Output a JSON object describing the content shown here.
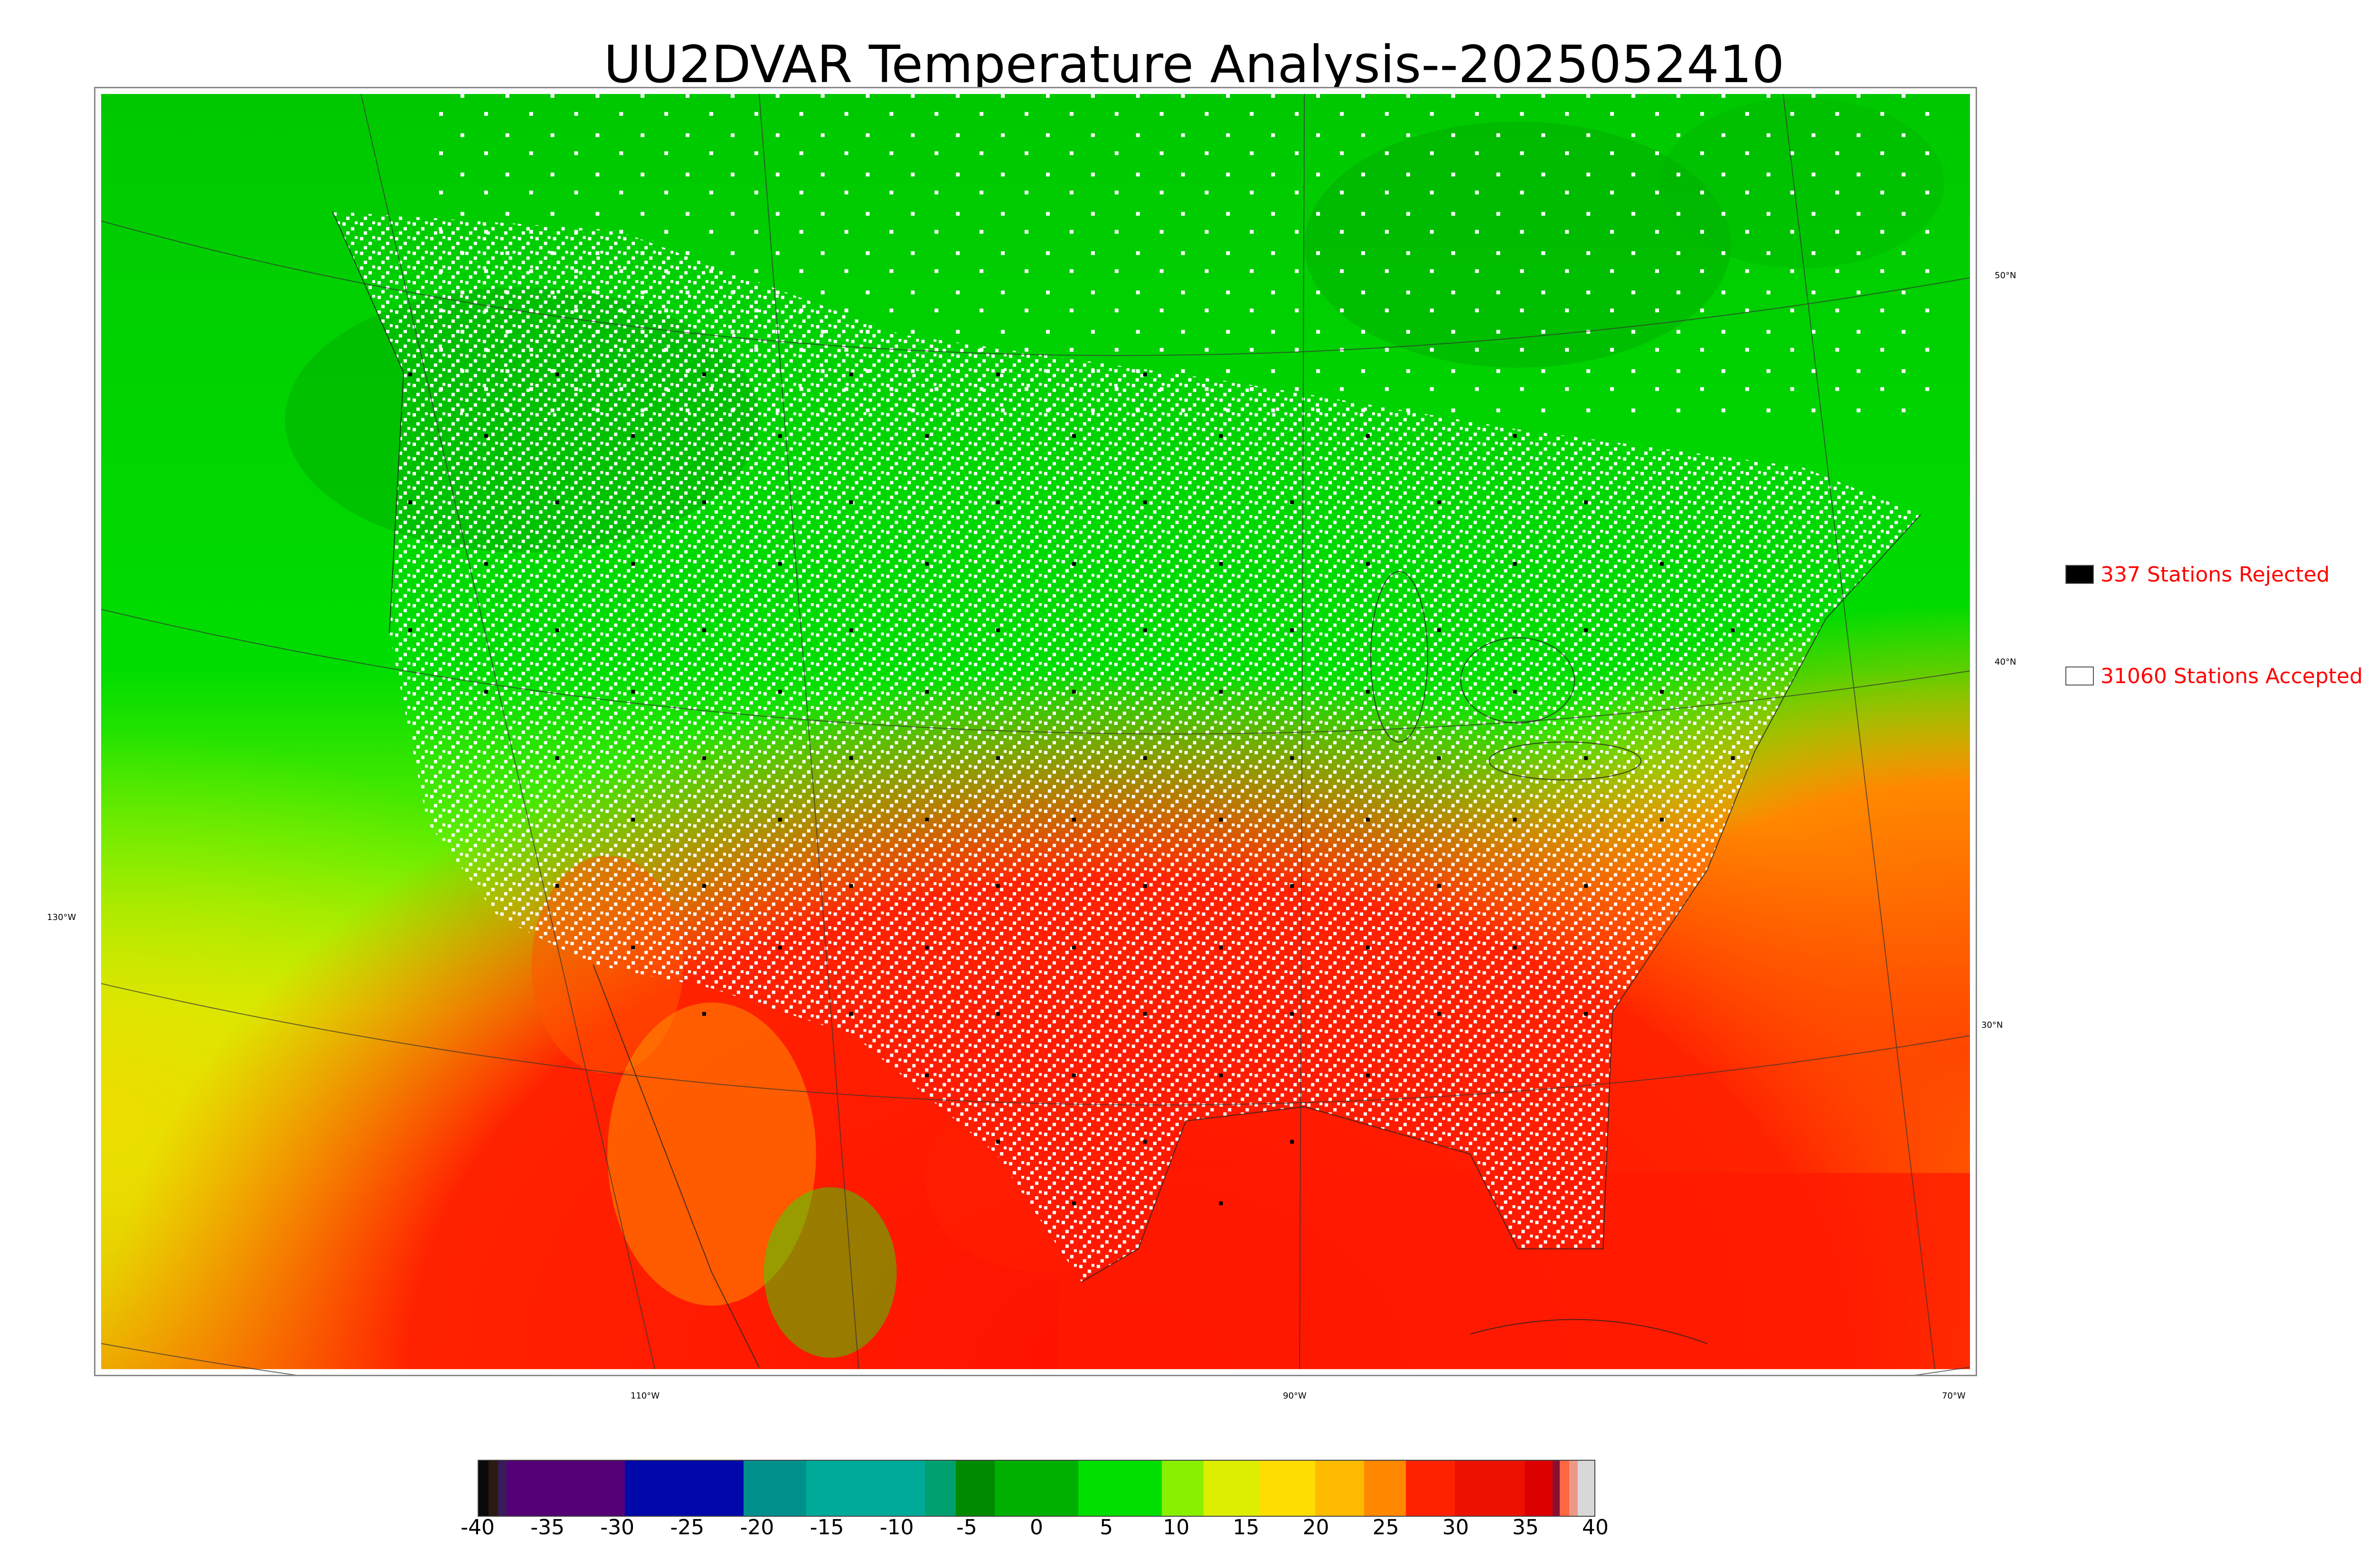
{
  "title": "UU2DVAR Temperature Analysis--2025052410",
  "map": {
    "latitude_labels": [
      "50°N",
      "40°N",
      "30°N"
    ],
    "longitude_labels": [
      "130°W",
      "110°W",
      "90°W",
      "70°W"
    ]
  },
  "legend": {
    "rejected": {
      "label": "337 Stations Rejected",
      "swatch_color": "#000000"
    },
    "accepted": {
      "label": "31060 Stations Accepted",
      "swatch_color": "#ffffff"
    }
  },
  "colorbar": {
    "ticks": [
      "-40",
      "-35",
      "-30",
      "-25",
      "-20",
      "-15",
      "-10",
      "-5",
      "0",
      "5",
      "10",
      "15",
      "20",
      "25",
      "30",
      "35",
      "40"
    ],
    "range": [
      -40,
      40
    ],
    "segments": [
      {
        "from": -40,
        "to": -39.3,
        "color": "#0a0a0a"
      },
      {
        "from": -39.3,
        "to": -38.6,
        "color": "#2a1a10"
      },
      {
        "from": -38.6,
        "to": -38.0,
        "color": "#3a1a5a"
      },
      {
        "from": -38.0,
        "to": -29.5,
        "color": "#550077"
      },
      {
        "from": -29.5,
        "to": -21.0,
        "color": "#0008aa"
      },
      {
        "from": -21.0,
        "to": -16.5,
        "color": "#00908c"
      },
      {
        "from": -16.5,
        "to": -8.0,
        "color": "#00aa99"
      },
      {
        "from": -8.0,
        "to": -5.8,
        "color": "#00a070"
      },
      {
        "from": -5.8,
        "to": -3.0,
        "color": "#008a00"
      },
      {
        "from": -3.0,
        "to": 3.0,
        "color": "#00b000"
      },
      {
        "from": 3.0,
        "to": 9.0,
        "color": "#00e000"
      },
      {
        "from": 9.0,
        "to": 12.0,
        "color": "#88f000"
      },
      {
        "from": 12.0,
        "to": 16.0,
        "color": "#ddee00"
      },
      {
        "from": 16.0,
        "to": 20.0,
        "color": "#ffdd00"
      },
      {
        "from": 20.0,
        "to": 23.5,
        "color": "#ffbb00"
      },
      {
        "from": 23.5,
        "to": 26.5,
        "color": "#ff8800"
      },
      {
        "from": 26.5,
        "to": 30.0,
        "color": "#ff2200"
      },
      {
        "from": 30.0,
        "to": 35.0,
        "color": "#ee1100"
      },
      {
        "from": 35.0,
        "to": 37.0,
        "color": "#dd0000"
      },
      {
        "from": 37.0,
        "to": 37.5,
        "color": "#881133"
      },
      {
        "from": 37.5,
        "to": 38.2,
        "color": "#ff6644"
      },
      {
        "from": 38.2,
        "to": 38.8,
        "color": "#ee9988"
      },
      {
        "from": 38.8,
        "to": 40.0,
        "color": "#d8d8d8"
      }
    ]
  }
}
